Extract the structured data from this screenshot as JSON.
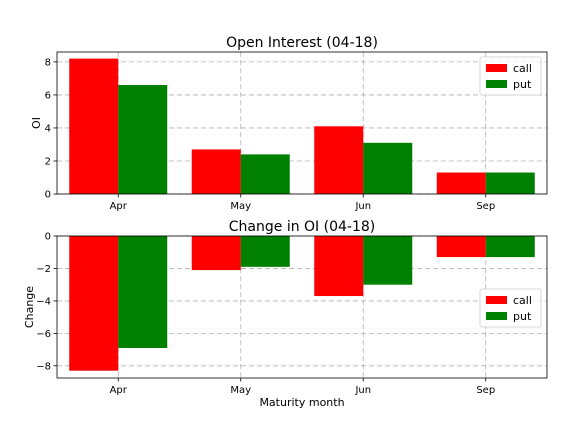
{
  "chart_data": [
    {
      "type": "bar",
      "title": "Open Interest (04-18)",
      "xlabel": "",
      "ylabel": "OI",
      "categories": [
        "Apr",
        "May",
        "Jun",
        "Sep"
      ],
      "series": [
        {
          "name": "call",
          "color": "#ff0000",
          "values": [
            8.2,
            2.7,
            4.1,
            1.3
          ]
        },
        {
          "name": "put",
          "color": "#008000",
          "values": [
            6.6,
            2.4,
            3.1,
            1.3
          ]
        }
      ],
      "ylim": [
        0,
        8.6
      ],
      "yticks": [
        0,
        2,
        4,
        6,
        8
      ],
      "ytick_labels": [
        "0",
        "2",
        "4",
        "6",
        "8"
      ],
      "grid": true,
      "legend": "top-right"
    },
    {
      "type": "bar",
      "title": "Change in OI (04-18)",
      "xlabel": "Maturity month",
      "ylabel": "Change",
      "categories": [
        "Apr",
        "May",
        "Jun",
        "Sep"
      ],
      "series": [
        {
          "name": "call",
          "color": "#ff0000",
          "values": [
            -8.3,
            -2.1,
            -3.7,
            -1.3
          ]
        },
        {
          "name": "put",
          "color": "#008000",
          "values": [
            -6.9,
            -1.9,
            -3.0,
            -1.3
          ]
        }
      ],
      "ylim": [
        -8.75,
        0
      ],
      "yticks": [
        0,
        -2,
        -4,
        -6,
        -8
      ],
      "ytick_labels": [
        "0",
        "−2",
        "−4",
        "−6",
        "−8"
      ],
      "grid": true,
      "legend": "center-right"
    }
  ]
}
